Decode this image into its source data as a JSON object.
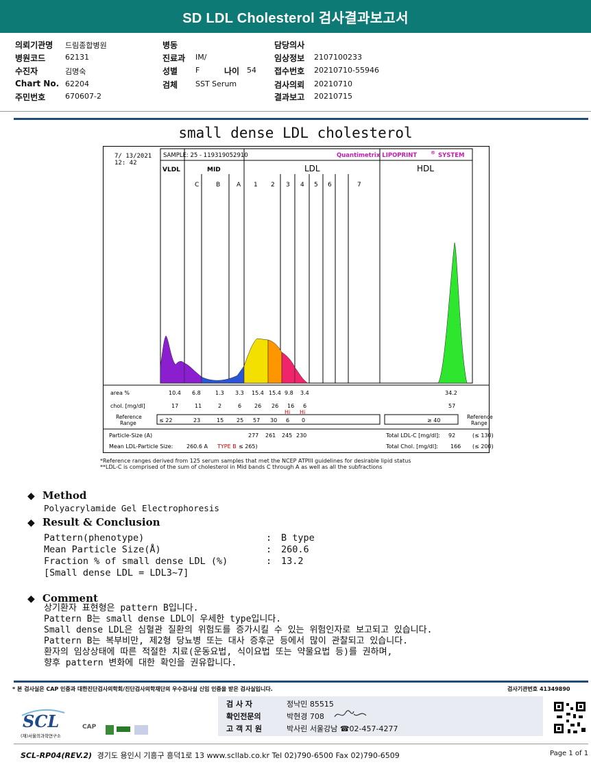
{
  "header": {
    "title": "SD LDL Cholesterol 검사결과보고서"
  },
  "patient": {
    "col1": [
      {
        "label": "의뢰기관명",
        "value": "드림종합병원"
      },
      {
        "label": "병원코드",
        "value": "62131"
      },
      {
        "label": "수진자",
        "value": "김명숙"
      },
      {
        "label": "Chart No.",
        "value": "62204"
      },
      {
        "label": "주민번호",
        "value": "670607-2"
      }
    ],
    "col2": [
      {
        "label": "병동",
        "value": ""
      },
      {
        "label": "진료과",
        "value": "IM/"
      },
      {
        "label": "성별",
        "value": "F"
      },
      {
        "label": "검체",
        "value": "SST Serum"
      }
    ],
    "age": {
      "label": "나이",
      "value": "54"
    },
    "col3": [
      {
        "label": "담당의사",
        "value": ""
      },
      {
        "label": "임상정보",
        "value": "2107100233"
      },
      {
        "label": "접수번호",
        "value": "20210710-55946"
      },
      {
        "label": "검사의뢰",
        "value": "20210710"
      },
      {
        "label": "결과보고",
        "value": "20210715"
      }
    ]
  },
  "chart_title": "small dense LDL cholesterol",
  "chart_data": {
    "type": "area",
    "date": "7/ 13/2021",
    "time": "12: 42",
    "sample": "SAMPLE:   25 - 119319052910",
    "system": "Quantimetrix LIPOPRINT",
    "system_sup": "®",
    "system_end": "SYSTEM",
    "groups": [
      "VLDL",
      "MID",
      "LDL",
      "HDL"
    ],
    "bands": [
      "C",
      "B",
      "A",
      "1",
      "2",
      "3",
      "4",
      "5",
      "6",
      "7"
    ],
    "rows": {
      "area_label": "area %",
      "area": [
        "10.4",
        "6.8",
        "1.3",
        "3.3",
        "15.4",
        "15.4",
        "9.8",
        "3.4",
        "34.2"
      ],
      "chol_label": "chol. [mg/dl]",
      "chol": [
        "17",
        "11",
        "2",
        "6",
        "26",
        "26",
        "16",
        "6",
        "57"
      ],
      "flags": [
        "Hi",
        "Hi"
      ],
      "ref_label": "Reference Range",
      "ref": [
        "≤ 22",
        "23",
        "15",
        "25",
        "57",
        "30",
        "6",
        "0"
      ],
      "ref_hdl": "≥ 40",
      "ref_right": "Reference Range",
      "particle_label": "Particle-Size (A)",
      "particle": [
        "277",
        "261",
        "245",
        "230"
      ],
      "mean_label": "Mean LDL-Particle Size:",
      "mean_value": "260.6 A",
      "mean_type": "TYPE B",
      "mean_ref": "≤ 265)",
      "total_ldl_label": "Total LDL-C [mg/dl]:",
      "total_ldl": "92",
      "total_ldl_ref": "(≤ 130)",
      "total_chol_label": "Total Chol. [mg/dl]:",
      "total_chol": "166",
      "total_chol_ref": "(≤ 200)"
    },
    "footnotes": [
      "*Reference ranges derived from 125 serum samples that met the NCEP ATPIII guidelines for desirable lipid status",
      "**LDL-C is comprised of the sum of cholesterol in Mid bands C through A as well as all the subfractions"
    ],
    "colors": {
      "vldl": "#8b1fd0",
      "mid": "#2a55d6",
      "ldl1": "#f4e000",
      "ldl2": "#ff9600",
      "ldl3": "#f0246a",
      "hdl": "#2ee62e"
    }
  },
  "method": {
    "heading": "Method",
    "text": "Polyacrylamide Gel Electrophoresis"
  },
  "result": {
    "heading": "Result & Conclusion",
    "items": [
      {
        "label": "Pattern(phenotype)",
        "value": "B type"
      },
      {
        "label": "Mean Particle Size(Å)",
        "value": "260.6"
      },
      {
        "label": "Fraction % of small dense LDL (%)",
        "value": "13.2"
      }
    ],
    "note": "[Small dense LDL = LDL3~7]"
  },
  "comment": {
    "heading": "Comment",
    "lines": [
      "상기환자 표현형은 pattern B입니다.",
      "Pattern B는 small dense LDL이 우세한 type입니다.",
      "Small dense LDL은 심혈관 질환의 위험도를 증가시킬 수 있는 위험인자로 보고되고 있습니다.",
      "Pattern B는 복부비만, 제2형 당뇨병 또는 대사 증후군 등에서 많이 관찰되고 있습니다.",
      "환자의 임상상태에 따른 적절한 치료(운동요법, 식이요법 또는 약물요법 등)를 권하며,",
      "향후 pattern 변화에 대한 확인을 권유합니다."
    ]
  },
  "footer": {
    "cert": "* 본 검사실은 CAP 인증과 대한진단검사의학회/진단검사의학재단의 우수검사실 신임 인증을 받은 검사실입니다.",
    "inst_no": "검사기관번호 41349890",
    "signers": [
      {
        "label": "검 사 자",
        "value": "정낙민 85515"
      },
      {
        "label": "확인전문의",
        "value": "박현경 708"
      },
      {
        "label": "고 객 지 원",
        "value": "박사린 서울강남 ☎02-457-4277"
      }
    ],
    "logo": "SCL",
    "logo_sub": "(재)서울의과학연구소",
    "cap": "CAP",
    "address_code": "SCL-RP04(REV.2)",
    "address": "경기도 용인시 기흥구 흥덕1로 13  www.scllab.co.kr  Tel 02)790-6500  Fax 02)790-6509",
    "page": "Page 1 of 1"
  }
}
